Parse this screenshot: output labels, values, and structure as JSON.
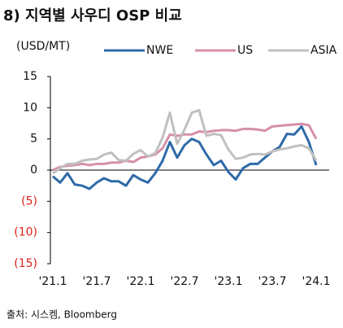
{
  "chart_data": {
    "type": "line",
    "title": "8) 지역별 사우디 OSP 비교",
    "y_label": "(USD/MT)",
    "source": "출처: 시스켐, Bloomberg",
    "categories": [
      "'21.1",
      null,
      null,
      null,
      null,
      null,
      "'21.7",
      null,
      null,
      null,
      null,
      null,
      "'22.1",
      null,
      null,
      null,
      null,
      null,
      "'22.7",
      null,
      null,
      null,
      null,
      null,
      "'23.1",
      null,
      null,
      null,
      null,
      null,
      "'23.7",
      null,
      null,
      null,
      null,
      null,
      "'24.1"
    ],
    "series": [
      {
        "name": "NWE",
        "color": "#2e6aa8",
        "values": [
          -1,
          -2,
          -0.5,
          -2.3,
          -2.5,
          -3,
          -2,
          -1.3,
          -1.8,
          -1.8,
          -2.5,
          -0.8,
          -1.5,
          -2,
          -0.5,
          1.5,
          4.5,
          2,
          4,
          5,
          4.5,
          2.5,
          0.8,
          1.5,
          -0.3,
          -1.5,
          0.3,
          1,
          1,
          2,
          3,
          3.7,
          5.8,
          5.7,
          7,
          4.5,
          0.8
        ]
      },
      {
        "name": "US",
        "color": "#d68fab",
        "values": [
          0,
          0.5,
          0.7,
          0.8,
          1,
          0.8,
          1,
          1,
          1.2,
          1.2,
          1.5,
          1.3,
          2,
          2.2,
          2.5,
          3.5,
          5.7,
          5.5,
          5.7,
          5.7,
          6.2,
          6.1,
          6.3,
          6.4,
          6.4,
          6.3,
          6.6,
          6.6,
          6.5,
          6.3,
          7,
          7.1,
          7.2,
          7.3,
          7.4,
          7.2,
          5
        ]
      },
      {
        "name": "ASIA",
        "color": "#c0c0c0",
        "values": [
          -0.5,
          0.3,
          1,
          1,
          1.5,
          1.7,
          1.8,
          2.5,
          2.8,
          1.6,
          1.5,
          2.6,
          3.2,
          2.2,
          2.7,
          5.2,
          9.2,
          4.2,
          6.5,
          9.2,
          9.6,
          5.5,
          5.8,
          5.6,
          3.3,
          1.8,
          2,
          2.5,
          2.6,
          2.5,
          3,
          3.3,
          3.5,
          3.8,
          4,
          3.5,
          1.5
        ]
      }
    ],
    "ylim": [
      -15,
      15
    ],
    "yticks": [
      15,
      10,
      5,
      0,
      {
        "value": -5,
        "label": "(5)"
      },
      {
        "value": -10,
        "label": "(10)"
      },
      {
        "value": -15,
        "label": "(15)"
      }
    ],
    "negative_label_color": "#e0201b"
  }
}
